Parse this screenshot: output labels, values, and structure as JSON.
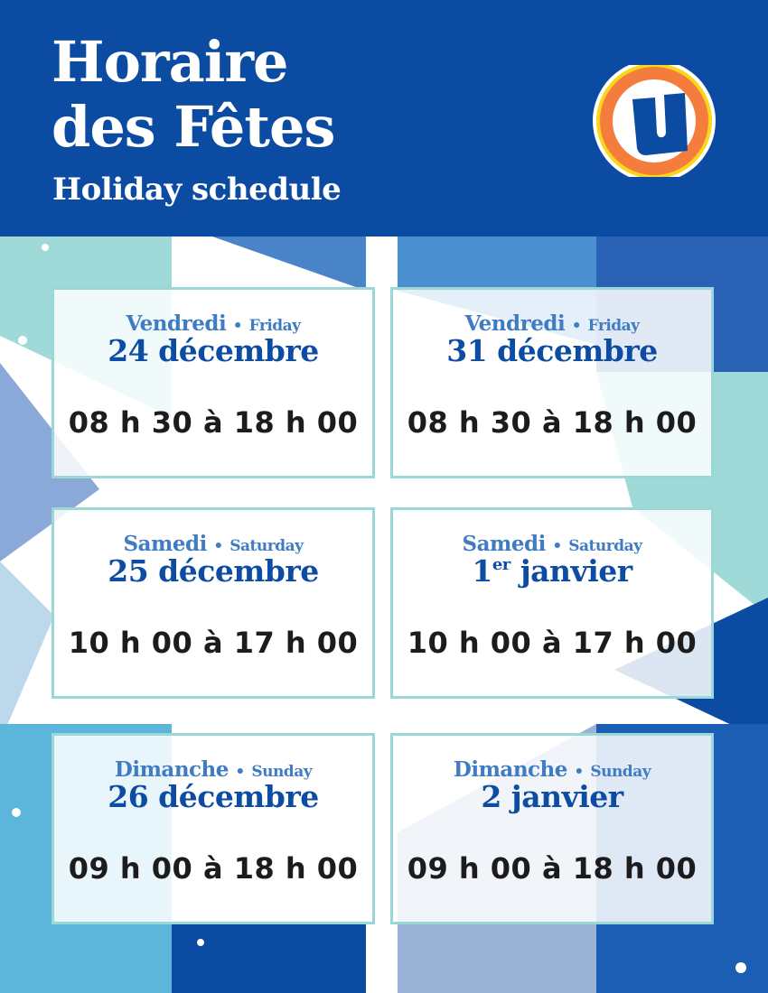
{
  "header": {
    "title_line1": "Horaire",
    "title_line2": "des Fêtes",
    "subtitle": "Holiday schedule"
  },
  "logo": {
    "letter": "U",
    "colors": {
      "ring_outer": "#ffffff",
      "ring_yellow": "#f9d71c",
      "ring_orange": "#f47c3c",
      "fill": "#0b4ba1"
    }
  },
  "colors": {
    "brand_blue": "#0b4ba1",
    "day_blue": "#3f7cc4",
    "border_teal": "#99d8d6"
  },
  "schedule": [
    {
      "day_fr": "Vendredi",
      "sep": "•",
      "day_en": "Friday",
      "date": "24 décembre",
      "date_sup": "",
      "hours": "08 h 30 à 18 h 00"
    },
    {
      "day_fr": "Vendredi",
      "sep": "•",
      "day_en": "Friday",
      "date": "31 décembre",
      "date_sup": "",
      "hours": "08 h 30 à 18 h 00"
    },
    {
      "day_fr": "Samedi",
      "sep": "•",
      "day_en": "Saturday",
      "date": "25 décembre",
      "date_sup": "",
      "hours": "10 h 00 à 17 h 00"
    },
    {
      "day_fr": "Samedi",
      "sep": "•",
      "day_en": "Saturday",
      "date_pre": "1",
      "date_sup": "er",
      "date": " janvier",
      "hours": "10 h 00 à 17 h 00"
    },
    {
      "day_fr": "Dimanche",
      "sep": "•",
      "day_en": "Sunday",
      "date": "26 décembre",
      "date_sup": "",
      "hours": "09 h 00 à 18 h 00"
    },
    {
      "day_fr": "Dimanche",
      "sep": "•",
      "day_en": "Sunday",
      "date": "2 janvier",
      "date_sup": "",
      "hours": "09 h 00 à 18 h 00"
    }
  ]
}
